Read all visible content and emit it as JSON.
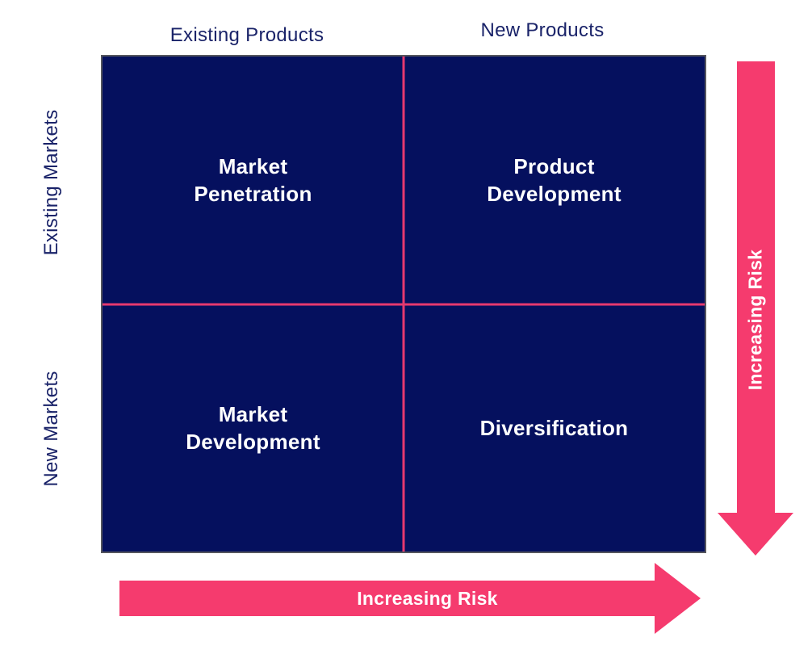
{
  "diagram": {
    "type": "2x2-matrix",
    "axis_labels": {
      "columns": [
        {
          "text": "Existing Products"
        },
        {
          "text": "New Products"
        }
      ],
      "rows": [
        {
          "text": "Existing Markets"
        },
        {
          "text": "New Markets"
        }
      ]
    },
    "quadrants": [
      {
        "position": "top-left",
        "label": "Market Penetration"
      },
      {
        "position": "top-right",
        "label": "Product Development"
      },
      {
        "position": "bottom-left",
        "label": "Market Development"
      },
      {
        "position": "bottom-right",
        "label": "Diversification"
      }
    ],
    "arrows": {
      "vertical": {
        "label": "Increasing Risk",
        "direction": "down"
      },
      "horizontal": {
        "label": "Increasing Risk",
        "direction": "right"
      }
    },
    "colors": {
      "matrix_background": "#05105E",
      "divider_pink": "#E6396F",
      "arrow_pink": "#F53B6E",
      "axis_label_navy": "#1A2369",
      "quadrant_text": "#FFFFFF",
      "matrix_border_gray": "#55565E"
    }
  }
}
